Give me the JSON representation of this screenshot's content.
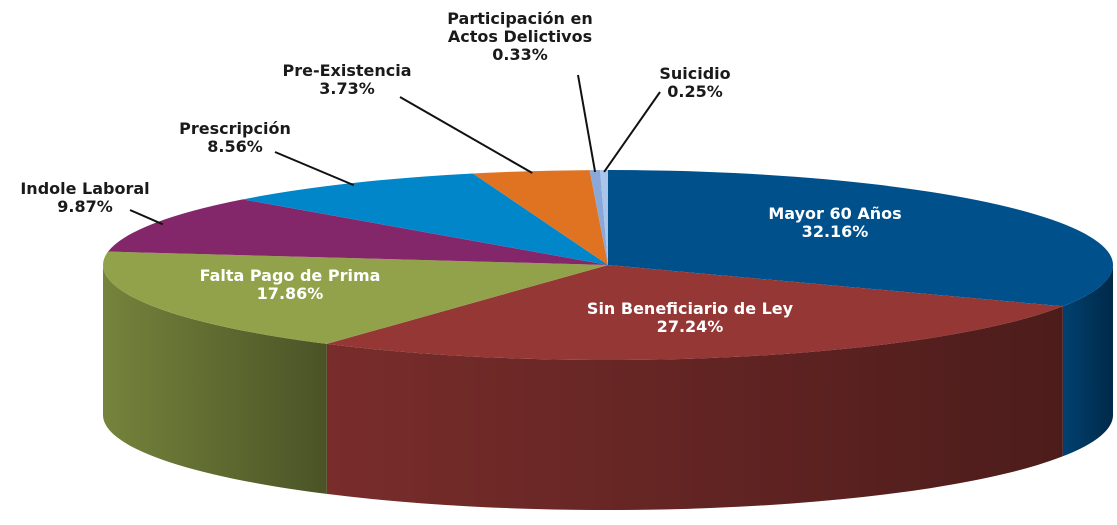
{
  "chart_data": {
    "type": "pie",
    "categories": [
      "Mayor 60 Años",
      "Sin Beneficiario de Ley",
      "Falta Pago de Prima",
      "Indole Laboral",
      "Prescripción",
      "Pre-Existencia",
      "Participación en Actos Delictivos",
      "Suicidio"
    ],
    "values": [
      32.16,
      27.24,
      17.86,
      9.87,
      8.56,
      3.73,
      0.33,
      0.25
    ],
    "value_labels": [
      "32.16%",
      "27.24%",
      "17.86%",
      "9.87%",
      "8.56%",
      "3.73%",
      "0.33%",
      "0.25%"
    ],
    "colors": [
      "#00508c",
      "#953735",
      "#92a24a",
      "#84276a",
      "#0086c9",
      "#e07322",
      "#8aa8d8",
      "#a9c6ea"
    ]
  }
}
